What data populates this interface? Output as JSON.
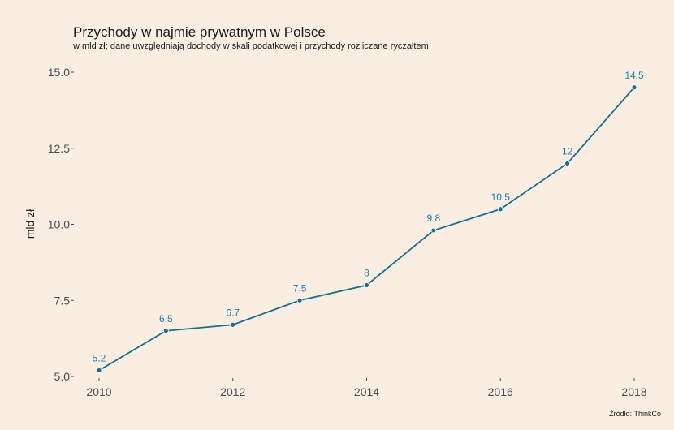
{
  "chart_data": {
    "type": "line",
    "title": "Przychody w najmie prywatnym w Polsce",
    "subtitle": "w mld zł; dane uwzględniają dochody w skali podatkowej i przychody rozliczane ryczałtem",
    "xlabel": "",
    "ylabel": "mld zł",
    "caption": "Źródło: ThinkCo",
    "x": [
      2010,
      2011,
      2012,
      2013,
      2014,
      2015,
      2016,
      2017,
      2018
    ],
    "values": [
      5.2,
      6.5,
      6.7,
      7.5,
      8,
      9.8,
      10.5,
      12,
      14.5
    ],
    "value_labels": [
      "5.2",
      "6.5",
      "6.7",
      "7.5",
      "8",
      "9.8",
      "10.5",
      "12",
      "14.5"
    ],
    "xticks": [
      2010,
      2012,
      2014,
      2016,
      2018
    ],
    "xtick_labels": [
      "2010",
      "2012",
      "2014",
      "2016",
      "2018"
    ],
    "yticks": [
      5,
      7.5,
      10,
      12.5,
      15
    ],
    "ytick_labels": [
      "5.0",
      "7.5",
      "10.0",
      "12.5",
      "15.0"
    ],
    "xlim": [
      2010,
      2018
    ],
    "ylim": [
      5,
      15
    ],
    "grid": false,
    "line_color": "#1a6e8c",
    "label_color": "#1f7fa6"
  }
}
